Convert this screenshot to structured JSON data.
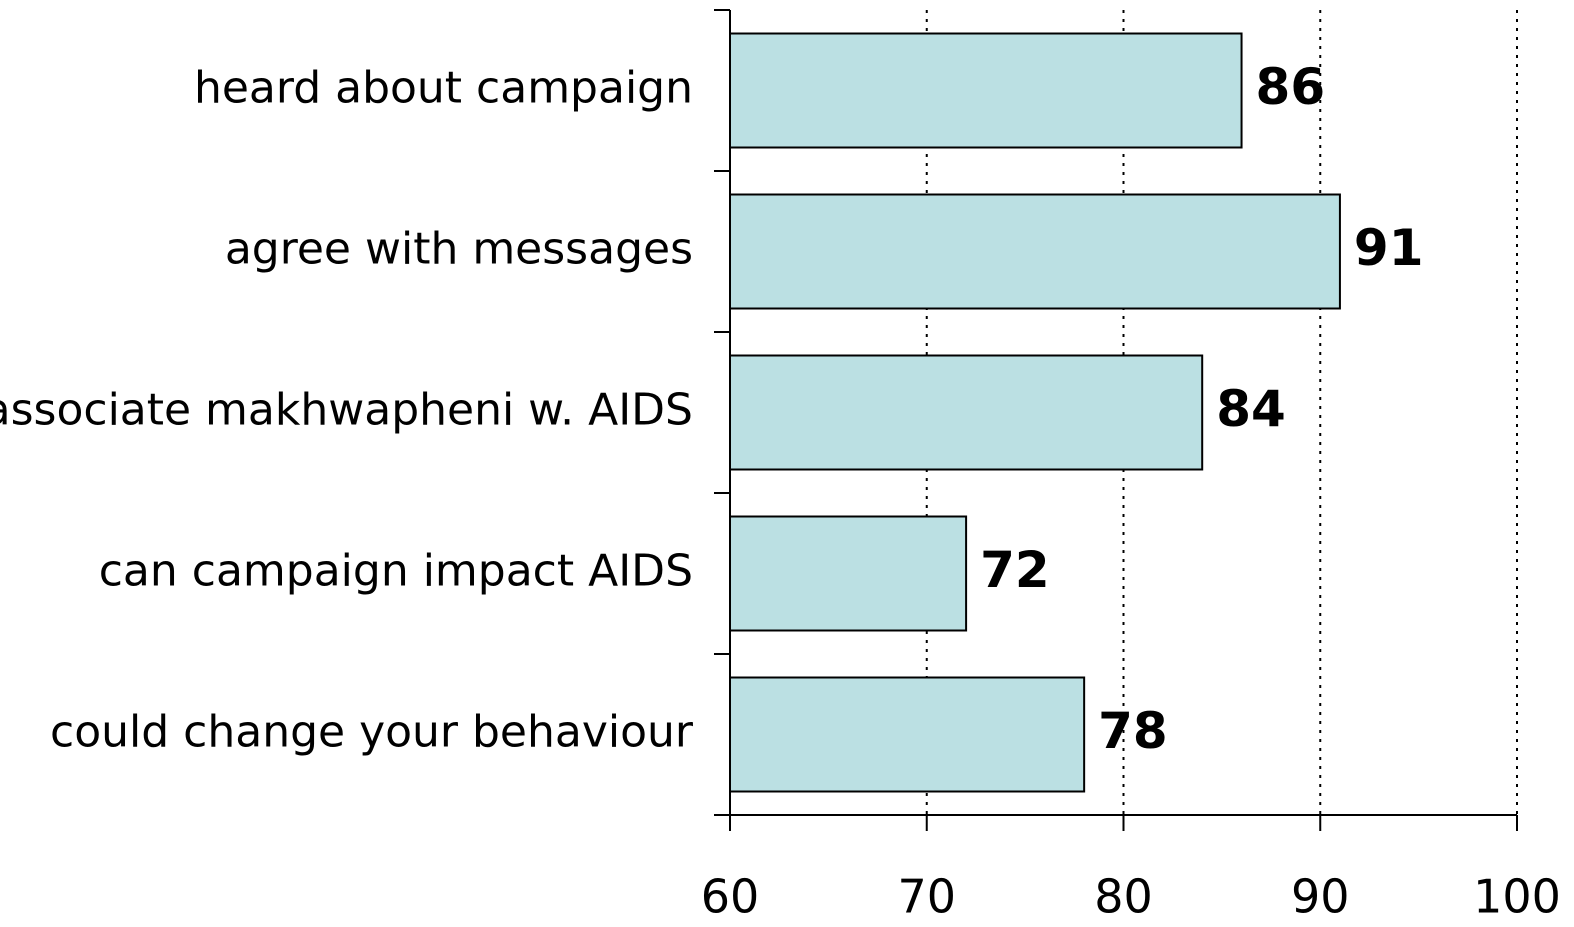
{
  "chart_data": {
    "type": "bar",
    "orientation": "horizontal",
    "categories": [
      "heard about campaign",
      "agree with messages",
      "associate makhwapheni w. AIDS",
      "can campaign impact AIDS",
      "could change your behaviour"
    ],
    "values": [
      86,
      91,
      84,
      72,
      78
    ],
    "color": "#bbe0e3",
    "xlim": [
      60,
      100
    ],
    "xticks": [
      60,
      70,
      80,
      90,
      100
    ],
    "grid": true
  }
}
